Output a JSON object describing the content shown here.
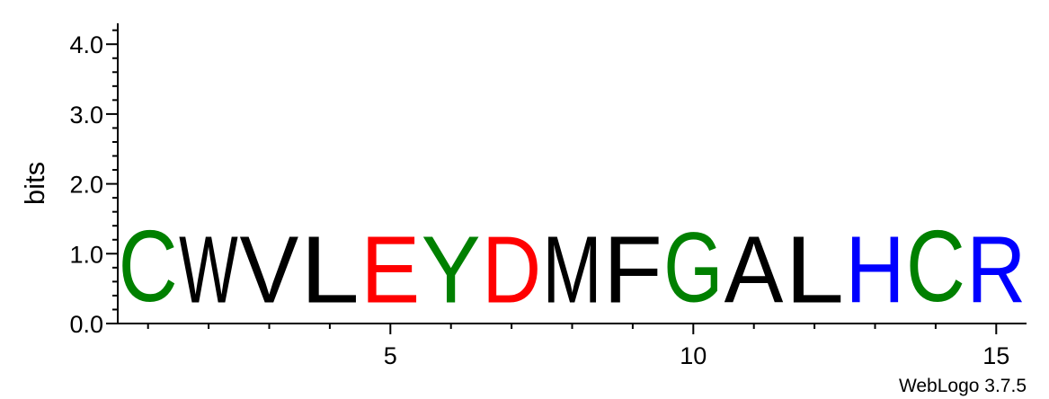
{
  "chart_data": {
    "type": "sequence-logo",
    "title": "",
    "xlabel": "",
    "ylabel": "bits",
    "ylim": [
      0,
      4.3
    ],
    "yticks": [
      {
        "value": 0,
        "label": "0.0"
      },
      {
        "value": 1,
        "label": "1.0"
      },
      {
        "value": 2,
        "label": "2.0"
      },
      {
        "value": 3,
        "label": "3.0"
      },
      {
        "value": 4,
        "label": "4.0"
      }
    ],
    "xlim": [
      0.5,
      15.5
    ],
    "xticks": [
      {
        "value": 5,
        "label": "5"
      },
      {
        "value": 10,
        "label": "10"
      },
      {
        "value": 15,
        "label": "15"
      }
    ],
    "positions": [
      {
        "pos": 1,
        "letter": "C",
        "height": 1.63,
        "color": "#008000"
      },
      {
        "pos": 2,
        "letter": "W",
        "height": 1.53,
        "color": "#000000"
      },
      {
        "pos": 3,
        "letter": "V",
        "height": 1.53,
        "color": "#000000"
      },
      {
        "pos": 4,
        "letter": "L",
        "height": 1.53,
        "color": "#000000"
      },
      {
        "pos": 5,
        "letter": "E",
        "height": 1.53,
        "color": "#ff0000"
      },
      {
        "pos": 6,
        "letter": "Y",
        "height": 1.53,
        "color": "#008000"
      },
      {
        "pos": 7,
        "letter": "D",
        "height": 1.53,
        "color": "#ff0000"
      },
      {
        "pos": 8,
        "letter": "M",
        "height": 1.53,
        "color": "#000000"
      },
      {
        "pos": 9,
        "letter": "F",
        "height": 1.53,
        "color": "#000000"
      },
      {
        "pos": 10,
        "letter": "G",
        "height": 1.59,
        "color": "#008000"
      },
      {
        "pos": 11,
        "letter": "A",
        "height": 1.53,
        "color": "#000000"
      },
      {
        "pos": 12,
        "letter": "L",
        "height": 1.53,
        "color": "#000000"
      },
      {
        "pos": 13,
        "letter": "H",
        "height": 1.53,
        "color": "#0000ff"
      },
      {
        "pos": 14,
        "letter": "C",
        "height": 1.63,
        "color": "#008000"
      },
      {
        "pos": 15,
        "letter": "R",
        "height": 1.53,
        "color": "#0000ff"
      }
    ],
    "credit": "WebLogo 3.7.5"
  }
}
